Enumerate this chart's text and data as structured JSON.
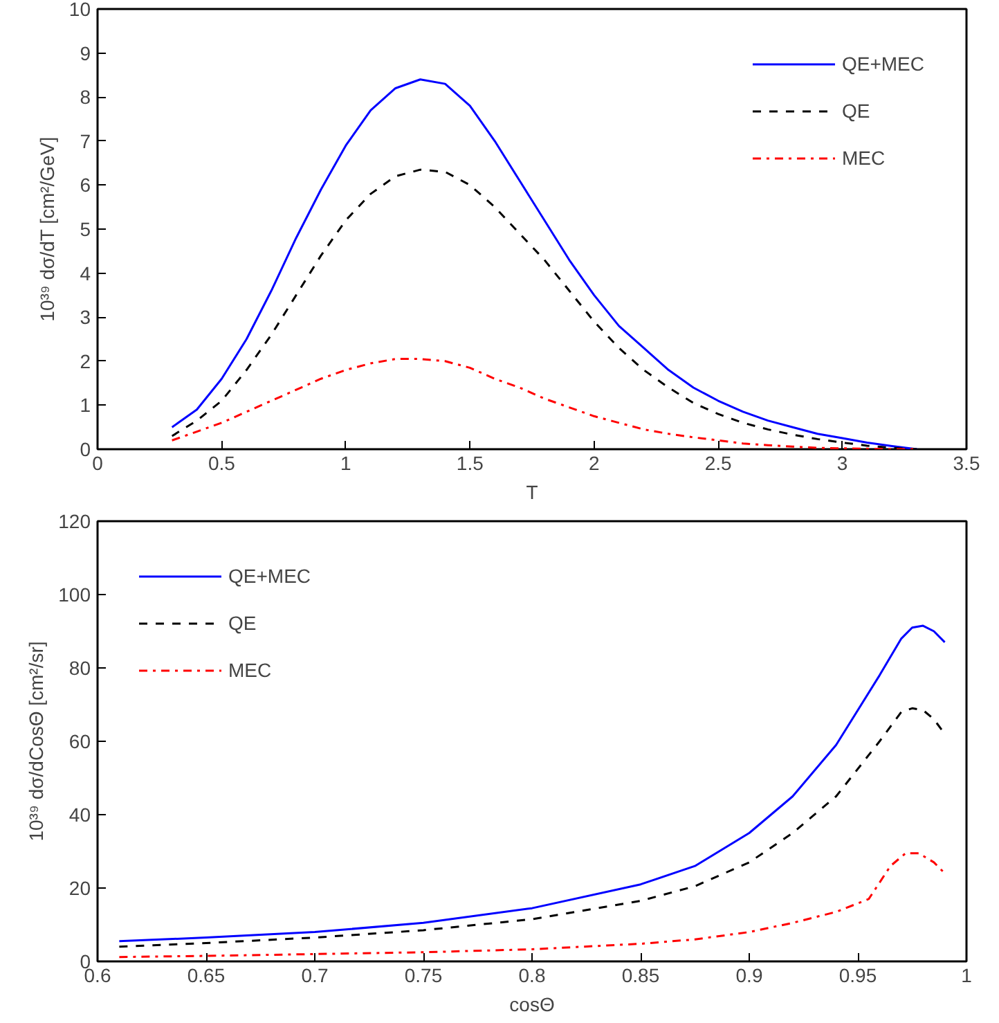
{
  "chart_data": [
    {
      "type": "line",
      "xlabel": "T",
      "ylabel": "10³⁹ dσ/dT [cm²/GeV]",
      "xlim": [
        0,
        3.5
      ],
      "ylim": [
        0,
        10
      ],
      "xticks": [
        0,
        0.5,
        1,
        1.5,
        2,
        2.5,
        3,
        3.5
      ],
      "yticks": [
        0,
        1,
        2,
        3,
        4,
        5,
        6,
        7,
        8,
        9,
        10
      ],
      "grid": false,
      "legend": "top right",
      "marker": "none",
      "x": [
        0.3,
        0.4,
        0.5,
        0.6,
        0.7,
        0.8,
        0.9,
        1.0,
        1.1,
        1.2,
        1.3,
        1.4,
        1.5,
        1.6,
        1.7,
        1.8,
        1.9,
        2.0,
        2.1,
        2.2,
        2.3,
        2.4,
        2.5,
        2.6,
        2.7,
        2.8,
        2.9,
        3.0,
        3.1,
        3.2,
        3.3
      ],
      "series": [
        {
          "name": "QE+MEC",
          "color": "#0000ff",
          "line_style": "solid",
          "values": [
            0.5,
            0.9,
            1.6,
            2.5,
            3.6,
            4.8,
            5.9,
            6.9,
            7.7,
            8.2,
            8.4,
            8.3,
            7.8,
            7.0,
            6.1,
            5.2,
            4.3,
            3.5,
            2.8,
            2.3,
            1.8,
            1.4,
            1.1,
            0.85,
            0.65,
            0.5,
            0.35,
            0.25,
            0.15,
            0.07,
            0
          ]
        },
        {
          "name": "QE",
          "color": "#000000",
          "line_style": "dashed",
          "values": [
            0.3,
            0.65,
            1.1,
            1.8,
            2.6,
            3.5,
            4.4,
            5.2,
            5.8,
            6.2,
            6.35,
            6.3,
            6.0,
            5.5,
            4.9,
            4.3,
            3.6,
            2.9,
            2.3,
            1.8,
            1.4,
            1.05,
            0.8,
            0.6,
            0.45,
            0.33,
            0.23,
            0.15,
            0.08,
            0.03,
            0
          ]
        },
        {
          "name": "MEC",
          "color": "#ff0000",
          "line_style": "dashdot",
          "values": [
            0.2,
            0.4,
            0.6,
            0.85,
            1.1,
            1.35,
            1.6,
            1.8,
            1.95,
            2.05,
            2.05,
            2.0,
            1.85,
            1.6,
            1.4,
            1.15,
            0.95,
            0.75,
            0.6,
            0.45,
            0.35,
            0.27,
            0.2,
            0.13,
            0.09,
            0.06,
            0.03,
            0.02,
            0.01,
            0,
            0
          ]
        }
      ]
    },
    {
      "type": "line",
      "xlabel": "cosΘ",
      "ylabel": "10³⁹ dσ/dCosΘ [cm²/sr]",
      "xlim": [
        0.6,
        1
      ],
      "ylim": [
        0,
        120
      ],
      "xticks": [
        0.6,
        0.65,
        0.7,
        0.75,
        0.8,
        0.85,
        0.9,
        0.95,
        1
      ],
      "yticks": [
        0,
        20,
        40,
        60,
        80,
        100,
        120
      ],
      "grid": false,
      "legend": "top left",
      "marker": "none",
      "series": [
        {
          "name": "QE+MEC",
          "color": "#0000ff",
          "line_style": "solid",
          "x": [
            0.61,
            0.65,
            0.7,
            0.75,
            0.8,
            0.85,
            0.875,
            0.9,
            0.92,
            0.94,
            0.96,
            0.97,
            0.975,
            0.98,
            0.985,
            0.99
          ],
          "values": [
            5.5,
            6.5,
            8,
            10.5,
            14.5,
            21,
            26,
            35,
            45,
            59,
            78,
            88,
            91,
            91.5,
            90,
            87
          ]
        },
        {
          "name": "QE",
          "color": "#000000",
          "line_style": "dashed",
          "x": [
            0.61,
            0.65,
            0.7,
            0.75,
            0.8,
            0.85,
            0.875,
            0.9,
            0.92,
            0.94,
            0.96,
            0.97,
            0.975,
            0.98,
            0.985,
            0.99
          ],
          "values": [
            4,
            5,
            6.5,
            8.5,
            11.5,
            16.5,
            20.5,
            27,
            35,
            45,
            60,
            68,
            69,
            68.5,
            66,
            62
          ]
        },
        {
          "name": "MEC",
          "color": "#ff0000",
          "line_style": "dashdot",
          "x": [
            0.61,
            0.65,
            0.7,
            0.75,
            0.8,
            0.85,
            0.875,
            0.9,
            0.92,
            0.94,
            0.955,
            0.965,
            0.972,
            0.978,
            0.985,
            0.99
          ],
          "values": [
            1.2,
            1.5,
            2,
            2.5,
            3.3,
            4.8,
            6,
            8,
            10.5,
            13.5,
            17,
            26,
            29.5,
            29.5,
            27,
            24
          ]
        }
      ]
    }
  ]
}
